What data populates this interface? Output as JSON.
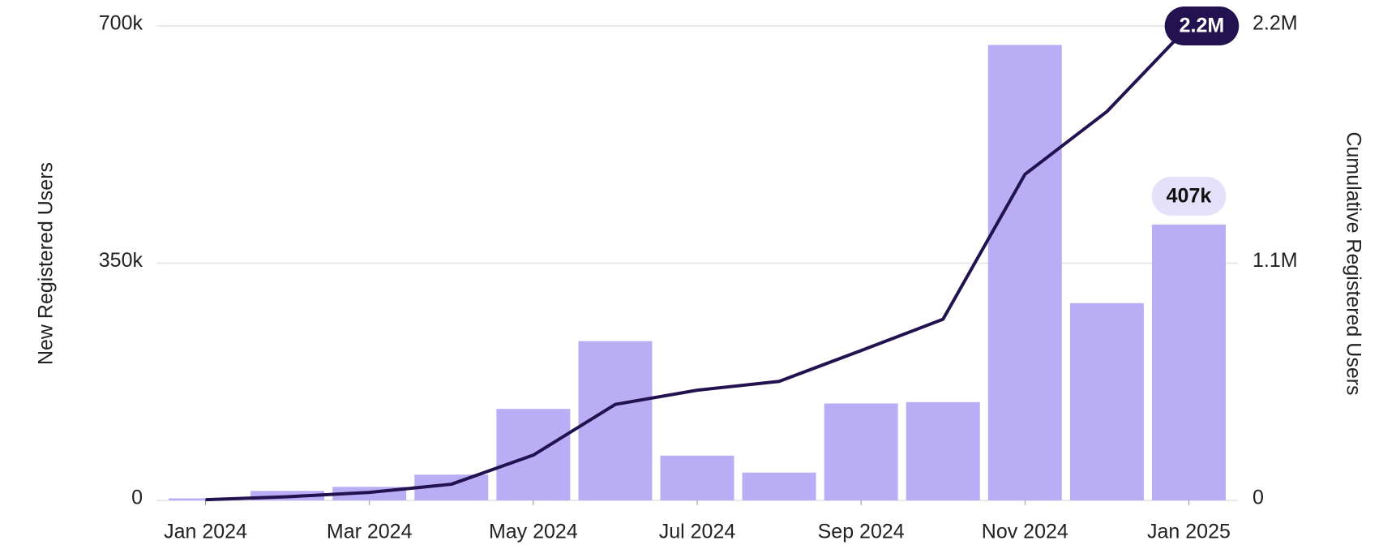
{
  "chart_data": {
    "type": "bar-line",
    "categories": [
      "Jan 2024",
      null,
      "Mar 2024",
      null,
      "May 2024",
      null,
      "Jul 2024",
      null,
      "Sep 2024",
      null,
      "Nov 2024",
      null,
      "Jan 2025"
    ],
    "series": [
      {
        "name": "New Registered Users",
        "type": "bar",
        "color": "#b9adf6",
        "values": [
          3000,
          14000,
          20000,
          38000,
          135000,
          235000,
          66000,
          41000,
          143000,
          145000,
          672000,
          291000,
          407000
        ],
        "value_labels": [
          null,
          null,
          null,
          null,
          null,
          null,
          null,
          null,
          null,
          null,
          null,
          null,
          "407k"
        ]
      },
      {
        "name": "Cumulative Registered Users",
        "type": "line",
        "axis": "y2",
        "color": "#22124f",
        "values": [
          3000,
          17000,
          37000,
          75000,
          210000,
          445000,
          511000,
          552000,
          695000,
          840000,
          1512000,
          1803000,
          2200000
        ],
        "value_labels": [
          null,
          null,
          null,
          null,
          null,
          null,
          null,
          null,
          null,
          null,
          null,
          null,
          "2.2M"
        ]
      }
    ],
    "ylabel": "New Registered Users",
    "y2label": "Cumulative Registered Users",
    "ylim": [
      0,
      700000
    ],
    "yticks": [
      {
        "value": 0,
        "label": "0"
      },
      {
        "value": 350000,
        "label": "350k"
      },
      {
        "value": 700000,
        "label": "700k"
      }
    ],
    "y2lim": [
      0,
      2200000
    ],
    "y2ticks": [
      {
        "value": 0,
        "label": "0"
      },
      {
        "value": 1100000,
        "label": "1.1M"
      },
      {
        "value": 2200000,
        "label": "2.2M"
      }
    ],
    "grid": true
  }
}
